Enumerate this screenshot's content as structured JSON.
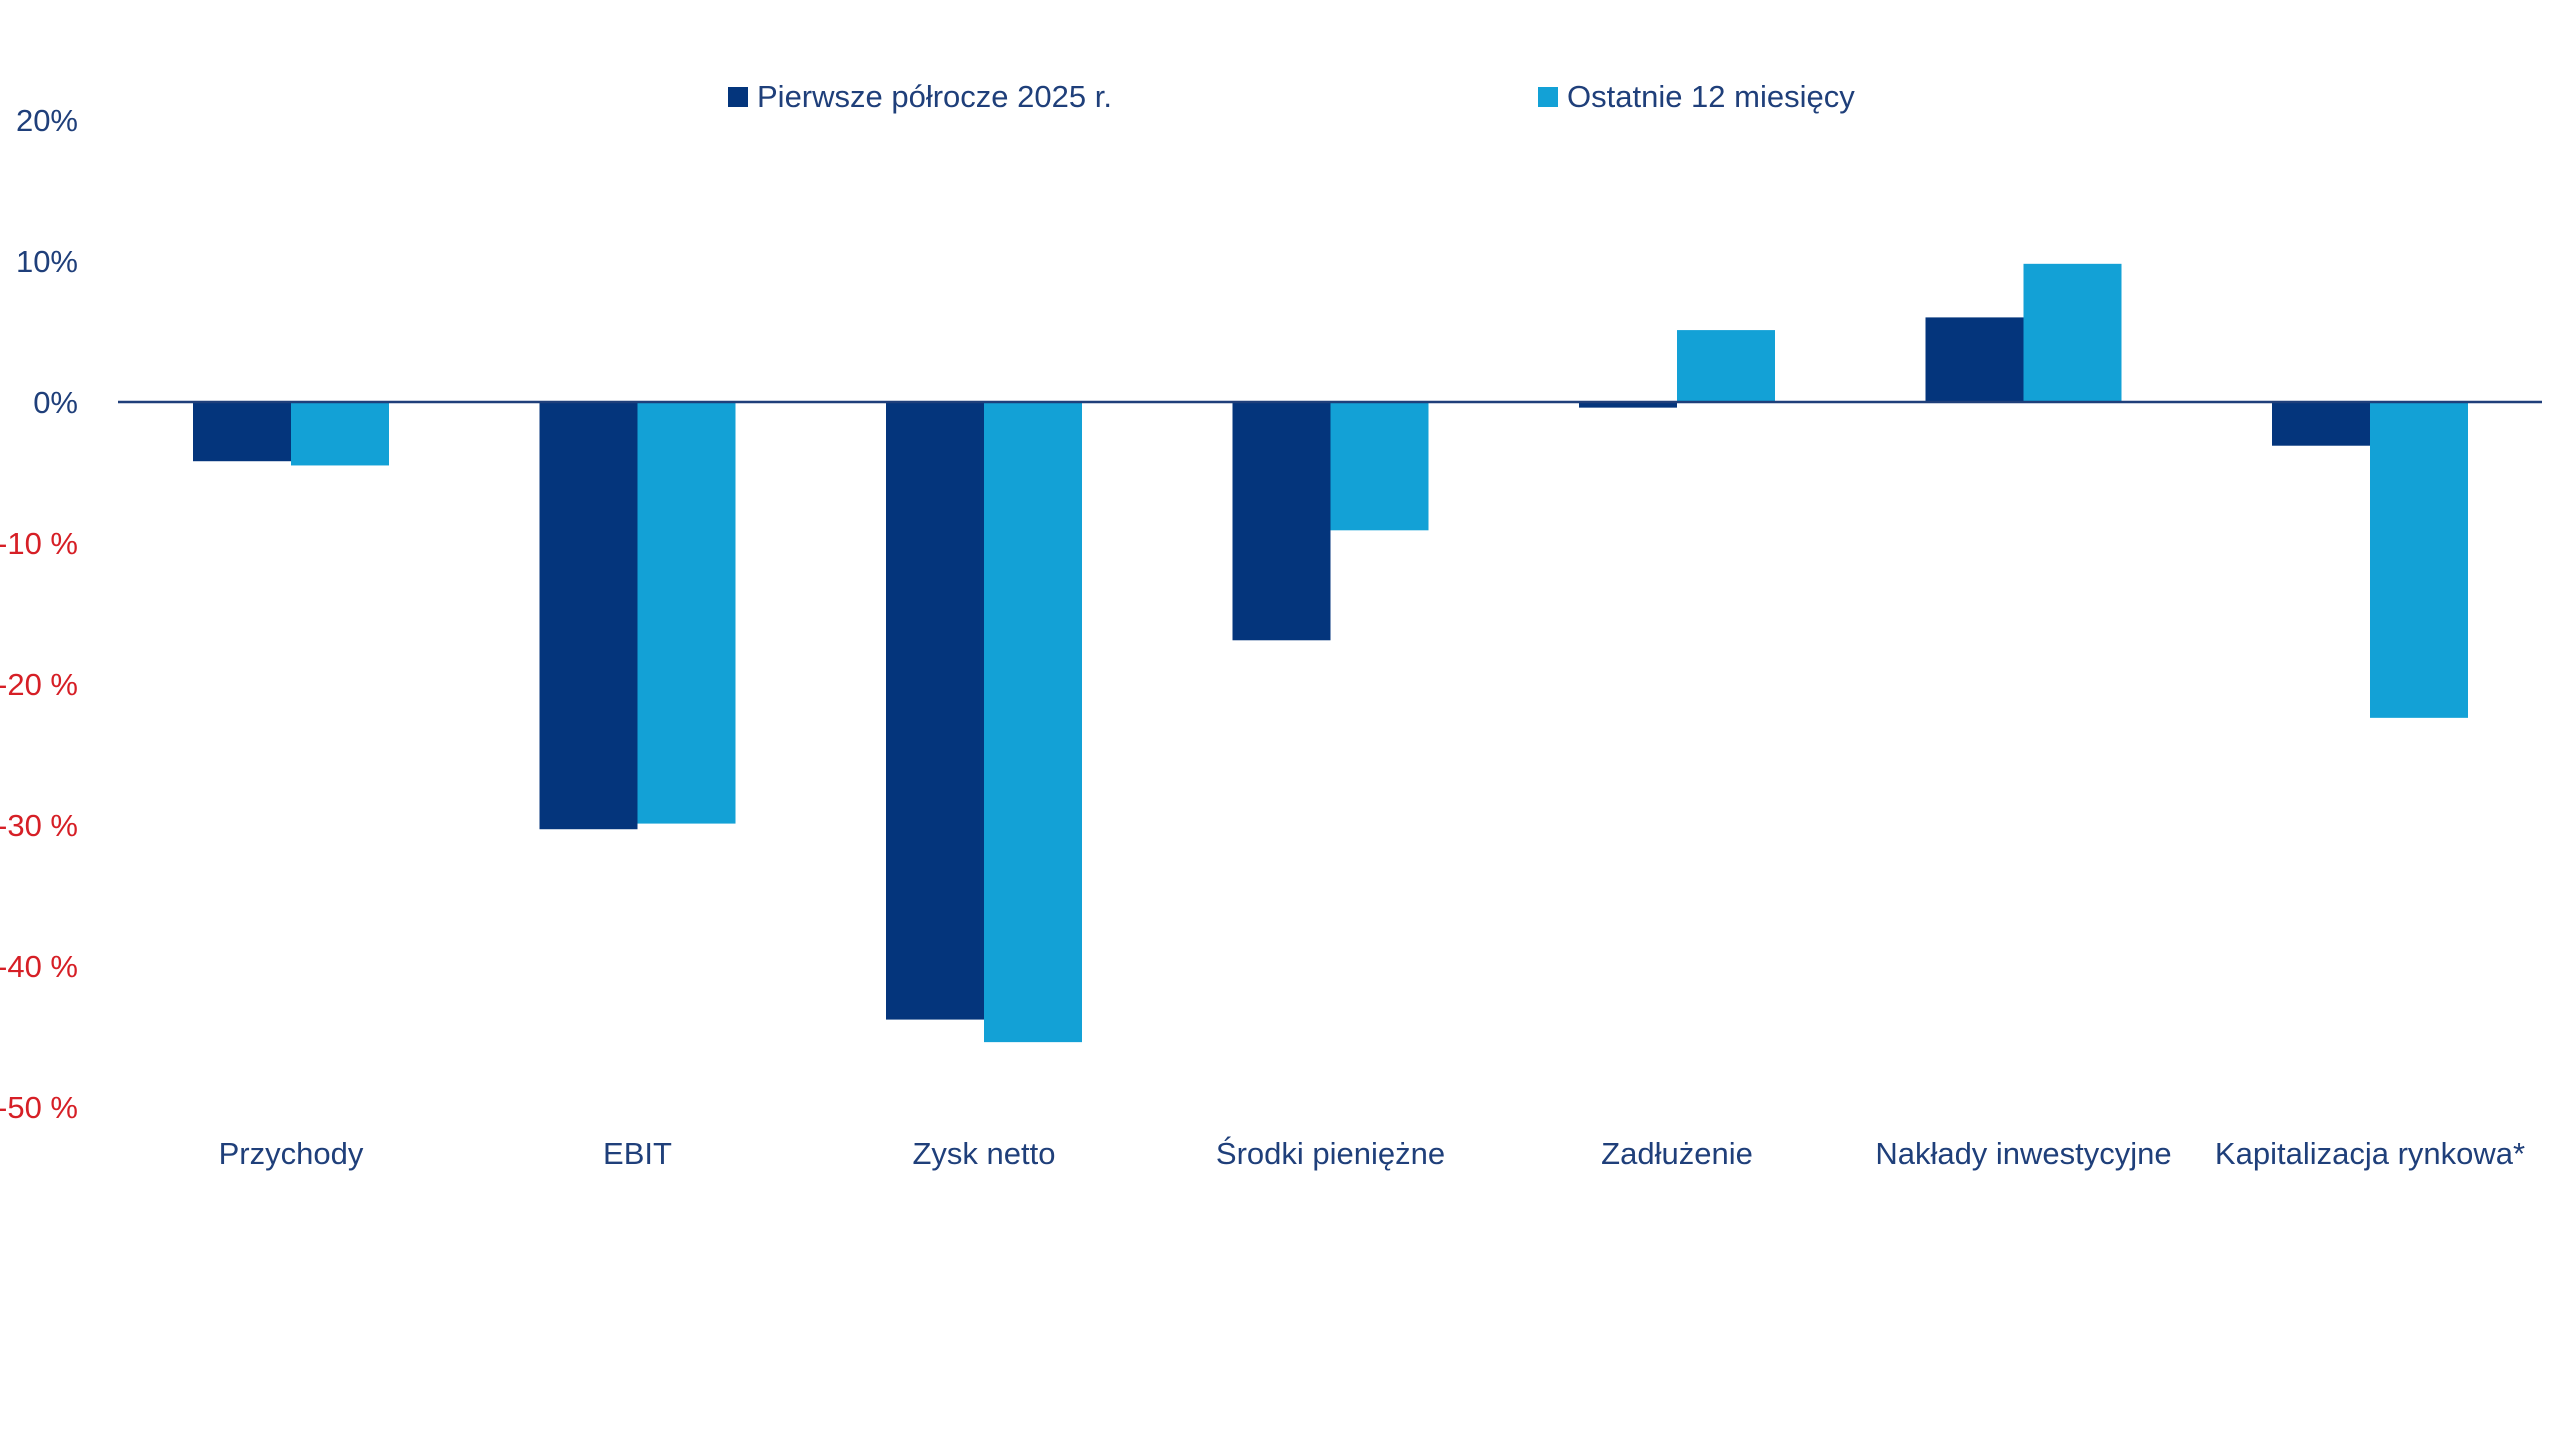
{
  "chart_data": {
    "type": "bar",
    "title": "",
    "xlabel": "",
    "ylabel": "",
    "categories": [
      "Przychody",
      "EBIT",
      "Zysk netto",
      "Środki pieniężne",
      "Zadłużenie",
      "Nakłady inwestycyjne",
      "Kapitalizacja rynkowa*"
    ],
    "series": [
      {
        "name": "Pierwsze półrocze 2025 r.",
        "color": "#04357c",
        "values": [
          -4.2,
          -30.3,
          -43.8,
          -16.9,
          -0.4,
          6.0,
          -3.1
        ]
      },
      {
        "name": "Ostatnie 12 miesięcy",
        "color": "#13a1d6",
        "values": [
          -4.5,
          -29.9,
          -45.4,
          -9.1,
          5.1,
          9.8,
          -22.4
        ]
      }
    ],
    "ylim": [
      -50,
      20
    ],
    "yticks": [
      {
        "value": 20,
        "label": "20%"
      },
      {
        "value": 10,
        "label": "10%"
      },
      {
        "value": 0,
        "label": "0%"
      },
      {
        "value": -10,
        "label": "-10 %"
      },
      {
        "value": -20,
        "label": "-20 %"
      },
      {
        "value": -30,
        "label": "-30 %"
      },
      {
        "value": -40,
        "label": "-40 %"
      },
      {
        "value": -50,
        "label": "-50 %"
      }
    ],
    "positive_tick_color": "#1f3f7a",
    "negative_tick_color": "#d61f26",
    "grid": false,
    "legend_position": "top-center"
  }
}
